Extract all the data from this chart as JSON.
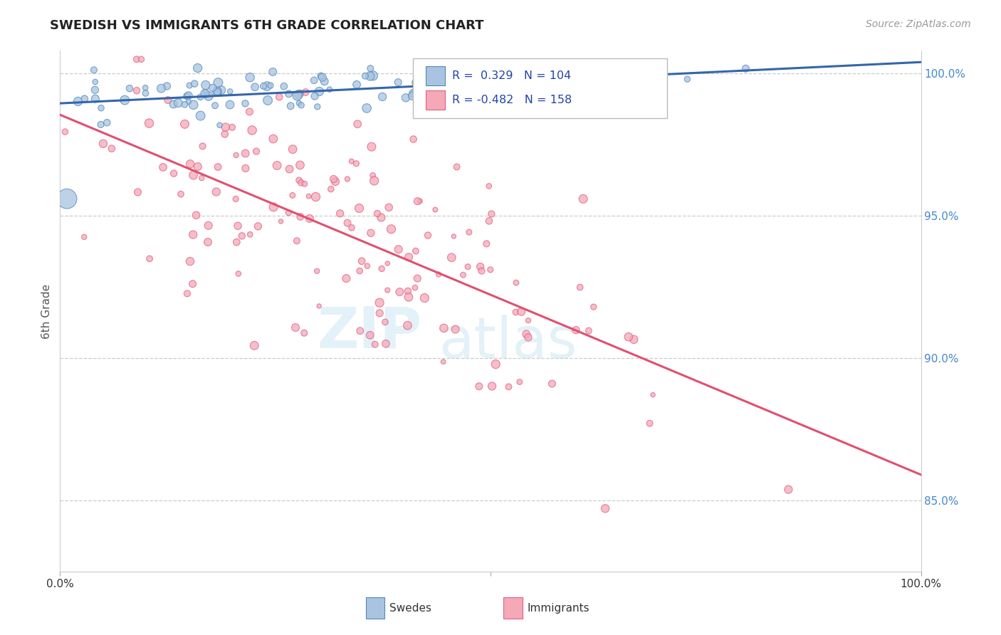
{
  "title": "SWEDISH VS IMMIGRANTS 6TH GRADE CORRELATION CHART",
  "source": "Source: ZipAtlas.com",
  "ylabel": "6th Grade",
  "right_yticks": [
    85.0,
    90.0,
    95.0,
    100.0
  ],
  "swedish_R": 0.329,
  "swedish_N": 104,
  "immigrant_R": -0.482,
  "immigrant_N": 158,
  "legend_swedes": "Swedes",
  "legend_immigrants": "Immigrants",
  "blue_fill": "#A8C4E0",
  "blue_edge": "#5588BB",
  "pink_fill": "#F4A8B8",
  "pink_edge": "#E06080",
  "blue_line": "#3366AA",
  "pink_line": "#E05070",
  "background": "#FFFFFF",
  "grid_color": "#CCCCCC",
  "title_color": "#222222",
  "axis_label_color": "#555555",
  "right_axis_color": "#4488CC",
  "legend_text_color": "#2244AA",
  "ylim_min": 0.825,
  "ylim_max": 1.008,
  "xlim_min": 0.0,
  "xlim_max": 1.0
}
